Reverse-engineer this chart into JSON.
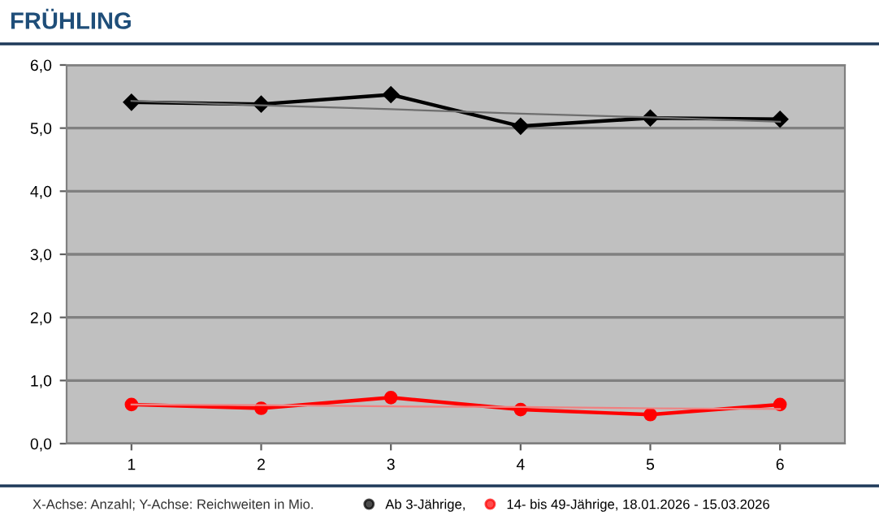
{
  "chart_data": {
    "type": "line",
    "title": "FRÜHLING",
    "x": [
      1,
      2,
      3,
      4,
      5,
      6
    ],
    "xlim": [
      0.5,
      6.5
    ],
    "xticks": [
      1,
      2,
      3,
      4,
      5,
      6
    ],
    "ylim": [
      0,
      6
    ],
    "yticks": [
      {
        "value": 0,
        "label": "0,0"
      },
      {
        "value": 1,
        "label": "1,0"
      },
      {
        "value": 2,
        "label": "2,0"
      },
      {
        "value": 3,
        "label": "3,0"
      },
      {
        "value": 4,
        "label": "4,0"
      },
      {
        "value": 5,
        "label": "5,0"
      },
      {
        "value": 6,
        "label": "6,0"
      }
    ],
    "grid": "y",
    "legend": "bottom",
    "series": [
      {
        "name": "Ab 3-Jährige,",
        "color": "#000000",
        "marker": "diamond",
        "values": [
          5.41,
          5.38,
          5.53,
          5.03,
          5.16,
          5.14
        ]
      },
      {
        "name": "14- bis 49-Jährige, 18.01.2026 - 15.03.2026",
        "color": "#ff0000",
        "marker": "circle",
        "values": [
          0.62,
          0.56,
          0.73,
          0.54,
          0.46,
          0.62
        ]
      },
      {
        "color": "#6e6e6e",
        "values": [
          5.43,
          5.36,
          5.3,
          5.23,
          5.17,
          5.1
        ],
        "marker": "none"
      },
      {
        "color": "#f08080",
        "values": [
          0.62,
          0.61,
          0.59,
          0.58,
          0.56,
          0.55
        ],
        "marker": "none"
      }
    ],
    "annotations": [
      "X-Achse: Anzahl; Y-Achse: Reichweiten in Mio."
    ]
  }
}
